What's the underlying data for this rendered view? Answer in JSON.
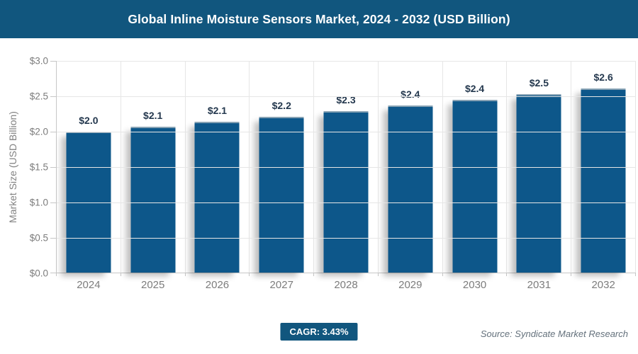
{
  "banner": {
    "title": "Global Inline Moisture Sensors Market, 2024 - 2032 (USD Billion)",
    "bg": "#11567E"
  },
  "chart_data": {
    "type": "bar",
    "title": "Global Inline Moisture Sensors Market, 2024 - 2032 (USD Billion)",
    "categories": [
      "2024",
      "2025",
      "2026",
      "2027",
      "2028",
      "2029",
      "2030",
      "2031",
      "2032"
    ],
    "values": [
      1.99,
      2.06,
      2.13,
      2.2,
      2.28,
      2.36,
      2.44,
      2.52,
      2.6
    ],
    "labels": [
      "$2.0",
      "$2.1",
      "$2.1",
      "$2.2",
      "$2.3",
      "$2.4",
      "$2.4",
      "$2.5",
      "$2.6"
    ],
    "xlabel": "",
    "ylabel": "Market Size (USD Billion)",
    "ylim": [
      0,
      3
    ],
    "ytick_step": 0.5,
    "ytick_labels": [
      "$0.0",
      "$0.5",
      "$1.0",
      "$1.5",
      "$2.0",
      "$2.5",
      "$3.0"
    ],
    "grid": true,
    "legend": false,
    "bar_color": "#0D578A",
    "value_label_color": "#24384E"
  },
  "footer": {
    "cagr_label": "CAGR: 3.43%",
    "badge_bg": "#11567E",
    "source": "Source: Syndicate Market Research"
  }
}
